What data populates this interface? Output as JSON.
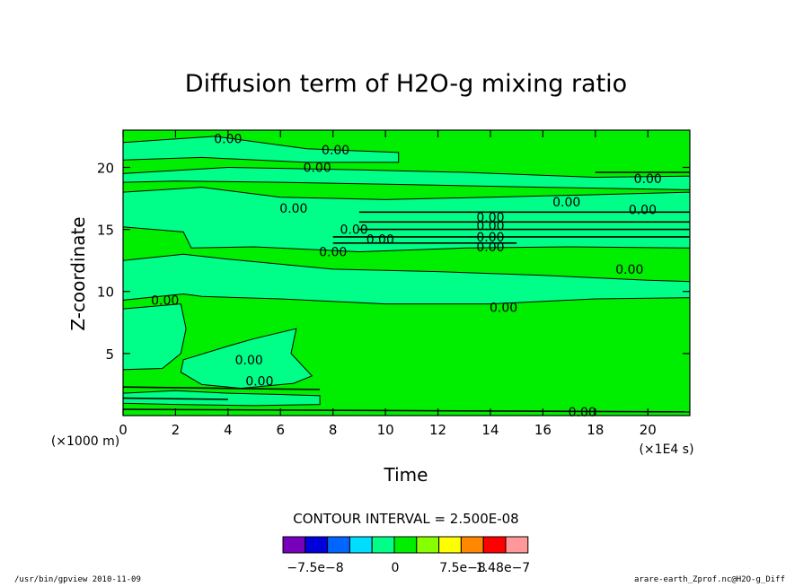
{
  "chart_data": {
    "type": "heatmap",
    "title": "Diffusion term of H2O-g mixing ratio",
    "xlabel": "Time",
    "ylabel": "Z-coordinate",
    "x_unit_label": "(×1E4 s)",
    "y_unit_label": "(×1000 m)",
    "x_ticks": [
      0,
      2,
      4,
      6,
      8,
      10,
      12,
      14,
      16,
      18,
      20
    ],
    "y_ticks": [
      5,
      10,
      15,
      20
    ],
    "xlim": [
      0,
      21.6
    ],
    "ylim": [
      0,
      23
    ],
    "background_color": "#00ee00",
    "contour_labels": [
      {
        "x": 4.0,
        "y": 22.3,
        "text": "0.00"
      },
      {
        "x": 8.1,
        "y": 21.4,
        "text": "0.00"
      },
      {
        "x": 7.4,
        "y": 20.0,
        "text": "0.00"
      },
      {
        "x": 6.5,
        "y": 16.7,
        "text": "0.00"
      },
      {
        "x": 8.8,
        "y": 15.0,
        "text": "0.00"
      },
      {
        "x": 9.8,
        "y": 14.2,
        "text": "0.00"
      },
      {
        "x": 8.0,
        "y": 13.2,
        "text": "0.00"
      },
      {
        "x": 14.0,
        "y": 16.0,
        "text": "0.00"
      },
      {
        "x": 14.0,
        "y": 15.3,
        "text": "0.00"
      },
      {
        "x": 14.0,
        "y": 14.4,
        "text": "0.00"
      },
      {
        "x": 14.0,
        "y": 13.6,
        "text": "0.00"
      },
      {
        "x": 16.9,
        "y": 17.2,
        "text": "0.00"
      },
      {
        "x": 20.0,
        "y": 19.1,
        "text": "0.00"
      },
      {
        "x": 19.8,
        "y": 16.6,
        "text": "0.00"
      },
      {
        "x": 19.3,
        "y": 11.8,
        "text": "0.00"
      },
      {
        "x": 1.6,
        "y": 9.3,
        "text": "0.00"
      },
      {
        "x": 14.5,
        "y": 8.7,
        "text": "0.00"
      },
      {
        "x": 4.8,
        "y": 4.5,
        "text": "0.00"
      },
      {
        "x": 5.2,
        "y": 2.8,
        "text": "0.00"
      },
      {
        "x": 17.5,
        "y": 0.3,
        "text": "0.00"
      }
    ],
    "contour_interval_text": "CONTOUR INTERVAL = 2.500E-08",
    "colorbar": {
      "colors": [
        "#7700bb",
        "#0000dd",
        "#0066ff",
        "#00ddff",
        "#00ff88",
        "#00ee00",
        "#88ff00",
        "#ffff00",
        "#ff8800",
        "#ff0000",
        "#ff9999"
      ],
      "labels": [
        "−7.5e−8",
        "0",
        "7.5e−8",
        "1.48e−7"
      ]
    }
  },
  "footer": {
    "left": "/usr/bin/gpview  2010-11-09",
    "right": "arare-earth_Zprof.nc@H2O-g_Diff"
  }
}
